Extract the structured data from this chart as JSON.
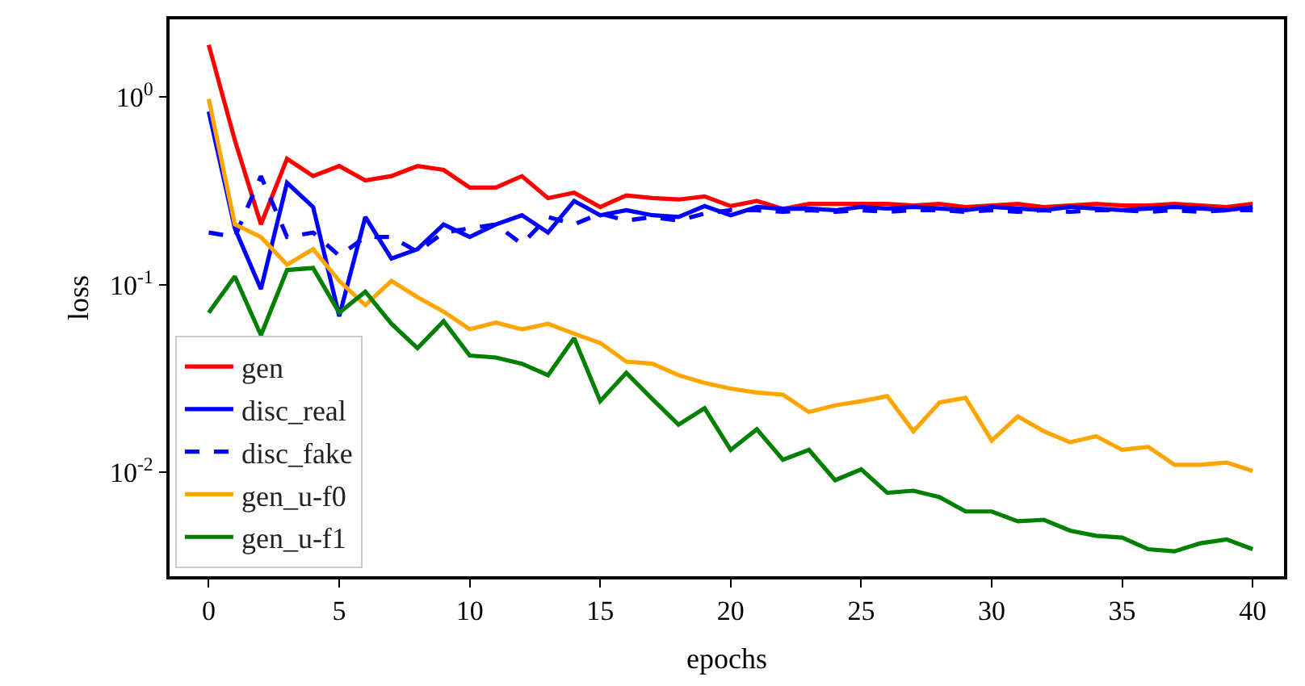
{
  "chart_data": {
    "type": "line",
    "xlabel": "epochs",
    "ylabel": "loss",
    "log": "y",
    "legend": "bottom left",
    "marker": "none",
    "x": [
      0,
      1,
      2,
      3,
      4,
      5,
      6,
      7,
      8,
      9,
      10,
      11,
      12,
      13,
      14,
      15,
      16,
      17,
      18,
      19,
      20,
      21,
      22,
      23,
      24,
      25,
      26,
      27,
      28,
      29,
      30,
      31,
      32,
      33,
      34,
      35,
      36,
      37,
      38,
      39,
      40
    ],
    "xlim": [
      -1.5,
      41.2
    ],
    "xticks": [
      0,
      5,
      10,
      15,
      20,
      25,
      30,
      35,
      40
    ],
    "ylim": [
      0.0028,
      2.6
    ],
    "yticks": [
      {
        "value": 0.01,
        "label": "10$^{-2}$"
      },
      {
        "value": 0.1,
        "label": "10$^{-1}$"
      },
      {
        "value": 1,
        "label": "10$^{0}$"
      }
    ],
    "series": [
      {
        "name": "gen",
        "color": "#ff0000",
        "line_style": "solid",
        "values": [
          1.9,
          0.59,
          0.21,
          0.47,
          0.38,
          0.43,
          0.36,
          0.38,
          0.43,
          0.41,
          0.33,
          0.33,
          0.38,
          0.29,
          0.31,
          0.26,
          0.3,
          0.29,
          0.285,
          0.296,
          0.263,
          0.28,
          0.254,
          0.27,
          0.27,
          0.27,
          0.27,
          0.265,
          0.27,
          0.26,
          0.265,
          0.27,
          0.26,
          0.265,
          0.27,
          0.265,
          0.265,
          0.27,
          0.265,
          0.26,
          0.27
        ]
      },
      {
        "name": "disc_real",
        "color": "#0000ff",
        "line_style": "solid",
        "values": [
          0.84,
          0.2,
          0.095,
          0.35,
          0.26,
          0.068,
          0.23,
          0.138,
          0.155,
          0.21,
          0.18,
          0.21,
          0.235,
          0.19,
          0.28,
          0.235,
          0.25,
          0.235,
          0.23,
          0.263,
          0.235,
          0.26,
          0.254,
          0.255,
          0.25,
          0.26,
          0.255,
          0.26,
          0.255,
          0.25,
          0.26,
          0.255,
          0.25,
          0.26,
          0.255,
          0.25,
          0.255,
          0.26,
          0.255,
          0.25,
          0.26
        ]
      },
      {
        "name": "disc_fake",
        "color": "#0000ff",
        "line_style": "dashed",
        "values": [
          0.19,
          0.18,
          0.38,
          0.18,
          0.19,
          0.143,
          0.18,
          0.18,
          0.15,
          0.19,
          0.2,
          0.21,
          0.165,
          0.23,
          0.21,
          0.24,
          0.22,
          0.23,
          0.22,
          0.24,
          0.25,
          0.25,
          0.245,
          0.25,
          0.245,
          0.25,
          0.245,
          0.25,
          0.25,
          0.245,
          0.25,
          0.245,
          0.25,
          0.245,
          0.25,
          0.25,
          0.245,
          0.25,
          0.245,
          0.25,
          0.25
        ]
      },
      {
        "name": "gen_u-f0",
        "color": "#ffa500",
        "line_style": "solid",
        "values": [
          0.98,
          0.21,
          0.18,
          0.128,
          0.155,
          0.105,
          0.078,
          0.105,
          0.086,
          0.072,
          0.058,
          0.063,
          0.058,
          0.062,
          0.055,
          0.049,
          0.039,
          0.038,
          0.033,
          0.03,
          0.028,
          0.0267,
          0.026,
          0.021,
          0.0228,
          0.024,
          0.0255,
          0.0166,
          0.0236,
          0.025,
          0.0148,
          0.0199,
          0.0166,
          0.0145,
          0.0156,
          0.0132,
          0.0137,
          0.011,
          0.011,
          0.0113,
          0.0102
        ]
      },
      {
        "name": "gen_u-f1",
        "color": "#008000",
        "line_style": "solid",
        "values": [
          0.071,
          0.111,
          0.054,
          0.12,
          0.123,
          0.071,
          0.092,
          0.062,
          0.046,
          0.064,
          0.042,
          0.041,
          0.038,
          0.033,
          0.052,
          0.024,
          0.034,
          0.0246,
          0.018,
          0.022,
          0.0132,
          0.017,
          0.0117,
          0.0132,
          0.0091,
          0.0104,
          0.0078,
          0.008,
          0.0074,
          0.0062,
          0.0062,
          0.0055,
          0.0056,
          0.0049,
          0.0046,
          0.0045,
          0.0039,
          0.0038,
          0.0042,
          0.0044,
          0.0039
        ]
      }
    ]
  }
}
